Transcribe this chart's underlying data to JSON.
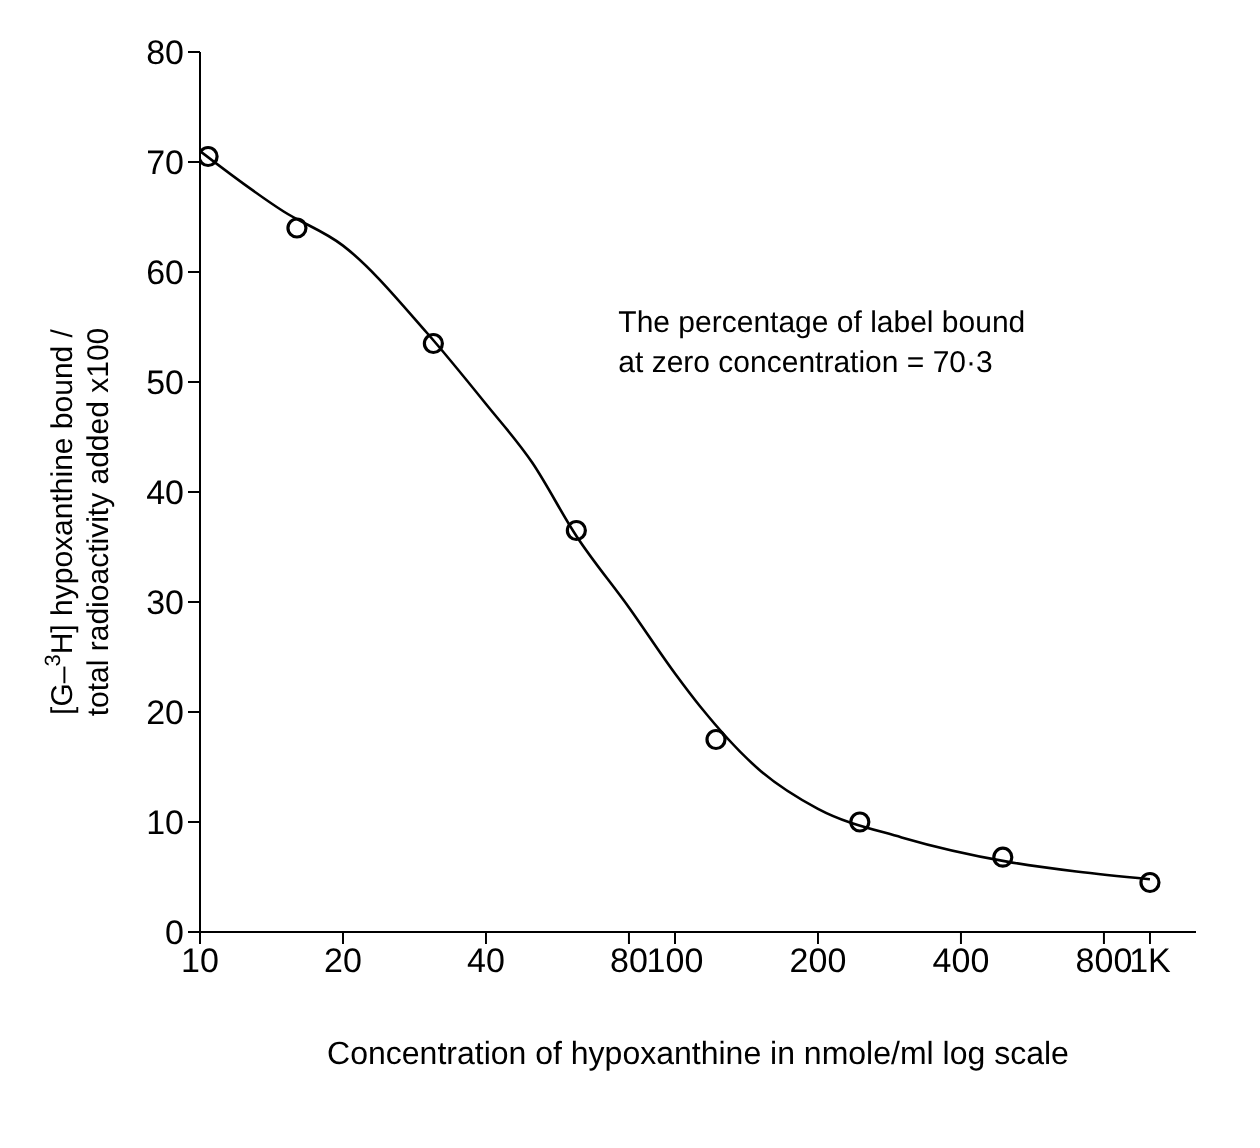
{
  "chart_data": {
    "type": "scatter",
    "xlabel": "Concentration of hypoxanthine in nmole/ml log scale",
    "ylabel": "[G–$^{3}$H] hypoxanthine bound /\ntotal radioactivity added x100",
    "annotations": [
      "The percentage of label bound\nat zero concentration = 70·3"
    ],
    "log": "x",
    "xlim": [
      10,
      1250
    ],
    "xticks": [
      10,
      20,
      40,
      80,
      100,
      200,
      400,
      800,
      {
        "value": 1000,
        "label": "1K"
      }
    ],
    "ylim": [
      0,
      80
    ],
    "yticks": [
      0,
      10,
      20,
      30,
      40,
      50,
      60,
      70,
      80
    ],
    "grid": false,
    "series": [
      {
        "color": "#000000",
        "marker": "circle",
        "x": [
          10.4,
          16,
          31,
          62,
          122,
          245,
          490,
          1000
        ],
        "values": [
          70.5,
          64,
          53.5,
          36.5,
          17.5,
          10,
          6.8,
          4.5
        ]
      },
      {
        "type": "line",
        "color": "#000000",
        "marker": "none",
        "line_style": "solid",
        "x": [
          10,
          15,
          20,
          30,
          40,
          50,
          62,
          80,
          100,
          113,
          150,
          200,
          300,
          500,
          700,
          1000
        ],
        "values": [
          71,
          65.5,
          62.4,
          54.5,
          48,
          42.7,
          36,
          29.5,
          23.5,
          20.5,
          14.8,
          11.2,
          8.6,
          6.4,
          5.5,
          4.8
        ]
      }
    ]
  }
}
